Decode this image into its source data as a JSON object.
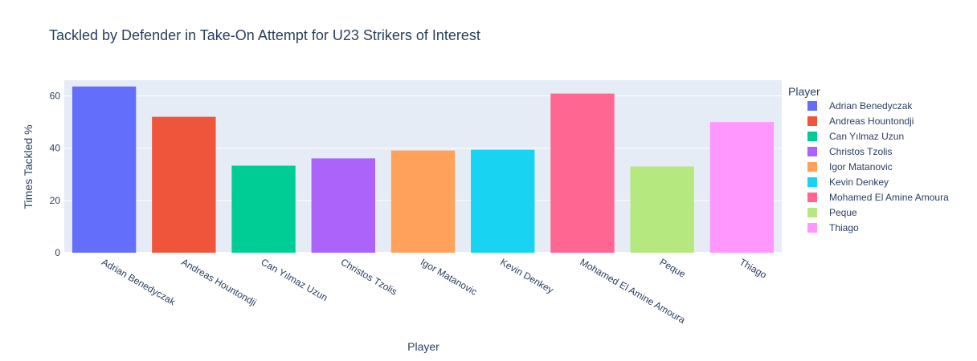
{
  "chart_data": {
    "type": "bar",
    "title": "Tackled by Defender in Take-On Attempt for U23 Strikers of Interest",
    "xlabel": "Player",
    "ylabel": "Times Tackled %",
    "ylim": [
      0,
      66
    ],
    "yticks": [
      0,
      20,
      40,
      60
    ],
    "grid": true,
    "legend_title": "Player",
    "legend_position": "right",
    "plot_background": "#E5ECF6",
    "categories": [
      "Adrian Benedyczak",
      "Andreas Hountondji",
      "Can Yılmaz Uzun",
      "Christos Tzolis",
      "Igor Matanovic",
      "Kevin Denkey",
      "Mohamed El Amine Amoura",
      "Peque",
      "Thiago"
    ],
    "values": [
      63.6,
      52.0,
      33.3,
      36.1,
      39.1,
      39.4,
      60.9,
      33.0,
      50.0
    ],
    "colors": [
      "#636EFA",
      "#EF553B",
      "#00CC96",
      "#AB63FA",
      "#FFA15A",
      "#19D3F3",
      "#FF6692",
      "#B6E880",
      "#FF97FF"
    ]
  }
}
